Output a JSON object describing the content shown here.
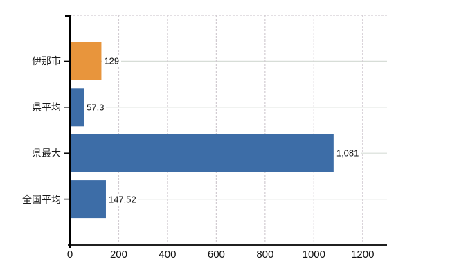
{
  "chart_data": {
    "type": "bar",
    "orientation": "horizontal",
    "title": "",
    "categories": [
      "伊那市",
      "県平均",
      "県最大",
      "全国平均"
    ],
    "values": [
      129,
      57.3,
      1081,
      147.52
    ],
    "value_labels": [
      "129",
      "57.3",
      "1,081",
      "147.52"
    ],
    "bar_colors": [
      "#e8953c",
      "#3d6da7",
      "#3d6da7",
      "#3d6da7"
    ],
    "x_ticks": [
      0,
      200,
      400,
      600,
      800,
      1000,
      1200
    ],
    "x_tick_labels": [
      "0",
      "200",
      "400",
      "600",
      "800",
      "1000",
      "1200"
    ],
    "xlim": [
      0,
      1300
    ],
    "grid": "horizontal solid at category centers, vertical dashed at ticks, dashed top border",
    "legend": "none",
    "colors": {
      "bar_orange": "#e8953c",
      "bar_blue": "#3d6da7",
      "axis": "#000000",
      "grid_horizontal": "#d7ddd7",
      "grid_vertical_dashed": "#d2ccd2",
      "text": "#111111",
      "background": "#ffffff"
    }
  }
}
